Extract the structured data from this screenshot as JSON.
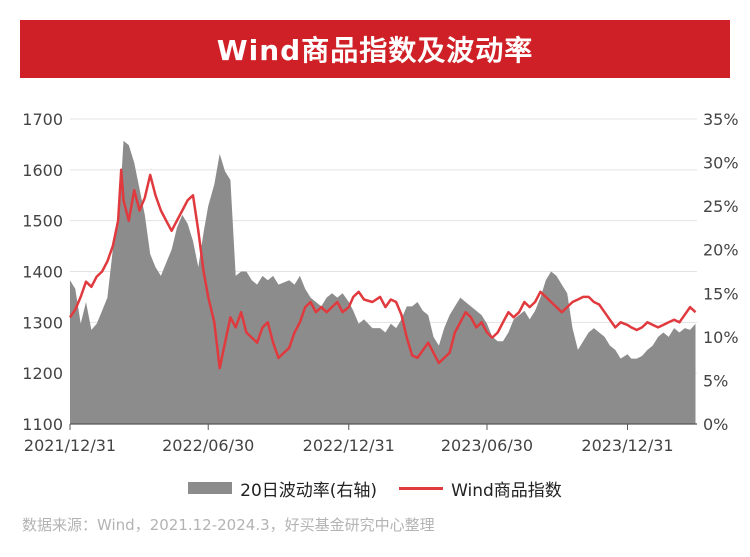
{
  "header": {
    "title": "Wind商品指数及波动率"
  },
  "footer": {
    "source": "数据来源：Wind，2021.12-2024.3，好买基金研究中心整理"
  },
  "colors": {
    "title_bg": "#cf2027",
    "area": "#8c8c8c",
    "line": "#e0393e",
    "grid": "#e3e3e3"
  },
  "chart_data": {
    "type": "line",
    "title": "Wind商品指数及波动率",
    "legend_position": "bottom",
    "grid": true,
    "x_range": [
      "2021-12-31",
      "2024-03-31"
    ],
    "x_ticks": [
      "2021/12/31",
      "2022/06/30",
      "2022/12/31",
      "2023/06/30",
      "2023/12/31"
    ],
    "y_left": {
      "range": [
        1100,
        1700
      ],
      "ticks": [
        "1100",
        "1200",
        "1300",
        "1400",
        "1500",
        "1600",
        "1700"
      ]
    },
    "y_right": {
      "range": [
        0,
        35
      ],
      "ticks": [
        "0%",
        "5%",
        "10%",
        "15%",
        "20%",
        "25%",
        "30%",
        "35%"
      ],
      "unit": "%"
    },
    "series": [
      {
        "name": "20日波动率(右轴)",
        "type": "area",
        "axis": "right",
        "points": [
          [
            "2021-12-31",
            16.5
          ],
          [
            "2022-01-07",
            15.5
          ],
          [
            "2022-01-14",
            11.5
          ],
          [
            "2022-01-21",
            14
          ],
          [
            "2022-01-28",
            10.8
          ],
          [
            "2022-02-04",
            11.5
          ],
          [
            "2022-02-11",
            13
          ],
          [
            "2022-02-18",
            14.5
          ],
          [
            "2022-02-25",
            20
          ],
          [
            "2022-03-04",
            24
          ],
          [
            "2022-03-08",
            28
          ],
          [
            "2022-03-11",
            32.5
          ],
          [
            "2022-03-18",
            32
          ],
          [
            "2022-03-25",
            30
          ],
          [
            "2022-04-01",
            27
          ],
          [
            "2022-04-08",
            24
          ],
          [
            "2022-04-15",
            19.5
          ],
          [
            "2022-04-22",
            18
          ],
          [
            "2022-04-29",
            17
          ],
          [
            "2022-05-06",
            18.5
          ],
          [
            "2022-05-13",
            20
          ],
          [
            "2022-05-20",
            22.5
          ],
          [
            "2022-05-27",
            24
          ],
          [
            "2022-06-03",
            23
          ],
          [
            "2022-06-10",
            21
          ],
          [
            "2022-06-17",
            18
          ],
          [
            "2022-06-24",
            22
          ],
          [
            "2022-06-30",
            25
          ],
          [
            "2022-07-08",
            27.5
          ],
          [
            "2022-07-15",
            31
          ],
          [
            "2022-07-22",
            29
          ],
          [
            "2022-07-29",
            28
          ],
          [
            "2022-08-05",
            17
          ],
          [
            "2022-08-12",
            17.5
          ],
          [
            "2022-08-19",
            17.5
          ],
          [
            "2022-08-26",
            16.5
          ],
          [
            "2022-09-02",
            16
          ],
          [
            "2022-09-09",
            17
          ],
          [
            "2022-09-16",
            16.5
          ],
          [
            "2022-09-23",
            17
          ],
          [
            "2022-09-30",
            16
          ],
          [
            "2022-10-14",
            16.5
          ],
          [
            "2022-10-21",
            16
          ],
          [
            "2022-10-28",
            17
          ],
          [
            "2022-11-04",
            15.5
          ],
          [
            "2022-11-11",
            14.5
          ],
          [
            "2022-11-18",
            14
          ],
          [
            "2022-11-25",
            13.5
          ],
          [
            "2022-12-02",
            14.5
          ],
          [
            "2022-12-09",
            15
          ],
          [
            "2022-12-16",
            14.5
          ],
          [
            "2022-12-23",
            15
          ],
          [
            "2022-12-31",
            14
          ],
          [
            "2023-01-06",
            13
          ],
          [
            "2023-01-13",
            11.5
          ],
          [
            "2023-01-20",
            12
          ],
          [
            "2023-01-31",
            11
          ],
          [
            "2023-02-10",
            11
          ],
          [
            "2023-02-17",
            10.5
          ],
          [
            "2023-02-24",
            11.5
          ],
          [
            "2023-03-03",
            11
          ],
          [
            "2023-03-10",
            12
          ],
          [
            "2023-03-17",
            13.5
          ],
          [
            "2023-03-24",
            13.5
          ],
          [
            "2023-03-31",
            14
          ],
          [
            "2023-04-07",
            13
          ],
          [
            "2023-04-14",
            12.5
          ],
          [
            "2023-04-21",
            10
          ],
          [
            "2023-04-28",
            9
          ],
          [
            "2023-05-05",
            11
          ],
          [
            "2023-05-12",
            12.5
          ],
          [
            "2023-05-19",
            13.5
          ],
          [
            "2023-05-26",
            14.5
          ],
          [
            "2023-06-02",
            14
          ],
          [
            "2023-06-09",
            13.5
          ],
          [
            "2023-06-16",
            13
          ],
          [
            "2023-06-23",
            12.5
          ],
          [
            "2023-06-30",
            11.5
          ],
          [
            "2023-07-07",
            10
          ],
          [
            "2023-07-14",
            9.5
          ],
          [
            "2023-07-21",
            9.5
          ],
          [
            "2023-07-28",
            10.5
          ],
          [
            "2023-08-04",
            12
          ],
          [
            "2023-08-11",
            12.5
          ],
          [
            "2023-08-18",
            13
          ],
          [
            "2023-08-25",
            12
          ],
          [
            "2023-09-01",
            13
          ],
          [
            "2023-09-08",
            14.5
          ],
          [
            "2023-09-15",
            16.5
          ],
          [
            "2023-09-22",
            17.5
          ],
          [
            "2023-09-29",
            17
          ],
          [
            "2023-10-06",
            16
          ],
          [
            "2023-10-13",
            15
          ],
          [
            "2023-10-20",
            11
          ],
          [
            "2023-10-27",
            8.5
          ],
          [
            "2023-11-03",
            9.5
          ],
          [
            "2023-11-10",
            10.5
          ],
          [
            "2023-11-17",
            11
          ],
          [
            "2023-11-24",
            10.5
          ],
          [
            "2023-12-01",
            10
          ],
          [
            "2023-12-08",
            9
          ],
          [
            "2023-12-15",
            8.5
          ],
          [
            "2023-12-22",
            7.5
          ],
          [
            "2023-12-31",
            8
          ],
          [
            "2024-01-05",
            7.5
          ],
          [
            "2024-01-12",
            7.5
          ],
          [
            "2024-01-19",
            7.8
          ],
          [
            "2024-01-26",
            8.5
          ],
          [
            "2024-02-02",
            9
          ],
          [
            "2024-02-09",
            10
          ],
          [
            "2024-02-16",
            10.5
          ],
          [
            "2024-02-23",
            10
          ],
          [
            "2024-03-01",
            11
          ],
          [
            "2024-03-08",
            10.5
          ],
          [
            "2024-03-15",
            11
          ],
          [
            "2024-03-22",
            10.8
          ],
          [
            "2024-03-29",
            11.5
          ]
        ]
      },
      {
        "name": "Wind商品指数",
        "type": "line",
        "axis": "left",
        "points": [
          [
            "2021-12-31",
            1310
          ],
          [
            "2022-01-07",
            1325
          ],
          [
            "2022-01-14",
            1350
          ],
          [
            "2022-01-21",
            1380
          ],
          [
            "2022-01-28",
            1370
          ],
          [
            "2022-02-04",
            1390
          ],
          [
            "2022-02-11",
            1400
          ],
          [
            "2022-02-18",
            1420
          ],
          [
            "2022-02-25",
            1450
          ],
          [
            "2022-03-04",
            1500
          ],
          [
            "2022-03-08",
            1600
          ],
          [
            "2022-03-11",
            1540
          ],
          [
            "2022-03-18",
            1500
          ],
          [
            "2022-03-25",
            1560
          ],
          [
            "2022-04-01",
            1520
          ],
          [
            "2022-04-08",
            1545
          ],
          [
            "2022-04-15",
            1590
          ],
          [
            "2022-04-22",
            1550
          ],
          [
            "2022-04-29",
            1520
          ],
          [
            "2022-05-06",
            1500
          ],
          [
            "2022-05-13",
            1480
          ],
          [
            "2022-05-20",
            1500
          ],
          [
            "2022-05-27",
            1520
          ],
          [
            "2022-06-03",
            1540
          ],
          [
            "2022-06-10",
            1550
          ],
          [
            "2022-06-17",
            1480
          ],
          [
            "2022-06-24",
            1400
          ],
          [
            "2022-06-30",
            1350
          ],
          [
            "2022-07-08",
            1300
          ],
          [
            "2022-07-15",
            1210
          ],
          [
            "2022-07-22",
            1260
          ],
          [
            "2022-07-29",
            1310
          ],
          [
            "2022-08-05",
            1290
          ],
          [
            "2022-08-12",
            1320
          ],
          [
            "2022-08-19",
            1280
          ],
          [
            "2022-08-26",
            1270
          ],
          [
            "2022-09-02",
            1260
          ],
          [
            "2022-09-09",
            1290
          ],
          [
            "2022-09-16",
            1300
          ],
          [
            "2022-09-23",
            1260
          ],
          [
            "2022-09-30",
            1230
          ],
          [
            "2022-10-14",
            1250
          ],
          [
            "2022-10-21",
            1280
          ],
          [
            "2022-10-28",
            1300
          ],
          [
            "2022-11-04",
            1330
          ],
          [
            "2022-11-11",
            1340
          ],
          [
            "2022-11-18",
            1320
          ],
          [
            "2022-11-25",
            1330
          ],
          [
            "2022-12-02",
            1320
          ],
          [
            "2022-12-09",
            1330
          ],
          [
            "2022-12-16",
            1340
          ],
          [
            "2022-12-23",
            1320
          ],
          [
            "2022-12-31",
            1330
          ],
          [
            "2023-01-06",
            1350
          ],
          [
            "2023-01-13",
            1360
          ],
          [
            "2023-01-20",
            1345
          ],
          [
            "2023-01-31",
            1340
          ],
          [
            "2023-02-10",
            1350
          ],
          [
            "2023-02-17",
            1330
          ],
          [
            "2023-02-24",
            1345
          ],
          [
            "2023-03-03",
            1340
          ],
          [
            "2023-03-10",
            1315
          ],
          [
            "2023-03-17",
            1270
          ],
          [
            "2023-03-24",
            1235
          ],
          [
            "2023-03-31",
            1230
          ],
          [
            "2023-04-07",
            1245
          ],
          [
            "2023-04-14",
            1260
          ],
          [
            "2023-04-21",
            1240
          ],
          [
            "2023-04-28",
            1220
          ],
          [
            "2023-05-05",
            1230
          ],
          [
            "2023-05-12",
            1240
          ],
          [
            "2023-05-19",
            1280
          ],
          [
            "2023-05-26",
            1300
          ],
          [
            "2023-06-02",
            1320
          ],
          [
            "2023-06-09",
            1310
          ],
          [
            "2023-06-16",
            1290
          ],
          [
            "2023-06-23",
            1300
          ],
          [
            "2023-06-30",
            1280
          ],
          [
            "2023-07-07",
            1270
          ],
          [
            "2023-07-14",
            1280
          ],
          [
            "2023-07-21",
            1300
          ],
          [
            "2023-07-28",
            1320
          ],
          [
            "2023-08-04",
            1310
          ],
          [
            "2023-08-11",
            1320
          ],
          [
            "2023-08-18",
            1340
          ],
          [
            "2023-08-25",
            1330
          ],
          [
            "2023-09-01",
            1340
          ],
          [
            "2023-09-08",
            1360
          ],
          [
            "2023-09-15",
            1350
          ],
          [
            "2023-09-22",
            1340
          ],
          [
            "2023-09-29",
            1330
          ],
          [
            "2023-10-06",
            1320
          ],
          [
            "2023-10-13",
            1330
          ],
          [
            "2023-10-20",
            1340
          ],
          [
            "2023-10-27",
            1345
          ],
          [
            "2023-11-03",
            1350
          ],
          [
            "2023-11-10",
            1350
          ],
          [
            "2023-11-17",
            1340
          ],
          [
            "2023-11-24",
            1335
          ],
          [
            "2023-12-01",
            1320
          ],
          [
            "2023-12-08",
            1305
          ],
          [
            "2023-12-15",
            1290
          ],
          [
            "2023-12-22",
            1300
          ],
          [
            "2023-12-31",
            1295
          ],
          [
            "2024-01-05",
            1290
          ],
          [
            "2024-01-12",
            1285
          ],
          [
            "2024-01-19",
            1290
          ],
          [
            "2024-01-26",
            1300
          ],
          [
            "2024-02-02",
            1295
          ],
          [
            "2024-02-09",
            1290
          ],
          [
            "2024-02-16",
            1295
          ],
          [
            "2024-02-23",
            1300
          ],
          [
            "2024-03-01",
            1305
          ],
          [
            "2024-03-08",
            1300
          ],
          [
            "2024-03-15",
            1315
          ],
          [
            "2024-03-22",
            1330
          ],
          [
            "2024-03-29",
            1320
          ]
        ]
      }
    ]
  }
}
